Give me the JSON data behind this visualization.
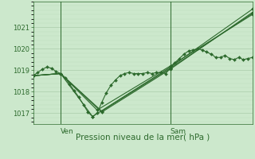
{
  "bg_color": "#cce8cc",
  "plot_bg": "#cce8cc",
  "grid_major_color": "#aaccaa",
  "grid_minor_color": "#bbddbb",
  "line_color": "#2d6a2d",
  "xlabel": "Pression niveau de la mer( hPa )",
  "ylim": [
    1016.5,
    1022.2
  ],
  "xlim": [
    0,
    48
  ],
  "yticks": [
    1017,
    1018,
    1019,
    1020,
    1021
  ],
  "ven_x": 6,
  "sam_x": 30,
  "series0": [
    0,
    1018.75,
    1,
    1018.9,
    2,
    1019.05,
    3,
    1019.15,
    4,
    1019.1,
    5,
    1018.95,
    6,
    1018.85,
    7,
    1018.65,
    8,
    1018.35,
    9,
    1018.05,
    10,
    1017.75,
    11,
    1017.4,
    12,
    1017.05,
    13,
    1016.85,
    14,
    1017.0,
    15,
    1017.5,
    16,
    1017.95,
    17,
    1018.3,
    18,
    1018.55,
    19,
    1018.75,
    20,
    1018.85,
    21,
    1018.9,
    22,
    1018.85,
    23,
    1018.85,
    24,
    1018.85,
    25,
    1018.9,
    26,
    1018.85,
    27,
    1018.9,
    28,
    1018.9,
    29,
    1018.85,
    30,
    1019.1,
    31,
    1019.35,
    32,
    1019.55,
    33,
    1019.75,
    34,
    1019.9,
    35,
    1019.95,
    36,
    1020.0,
    37,
    1019.95,
    38,
    1019.85,
    39,
    1019.75,
    40,
    1019.6,
    41,
    1019.6,
    42,
    1019.7,
    43,
    1019.55,
    44,
    1019.5,
    45,
    1019.6,
    46,
    1019.5,
    47,
    1019.55,
    48,
    1019.6
  ],
  "series1": [
    0,
    1018.75,
    6,
    1018.85,
    13,
    1016.85,
    30,
    1019.15,
    48,
    1021.85
  ],
  "series2": [
    0,
    1018.75,
    6,
    1018.85,
    15,
    1017.05,
    30,
    1019.05,
    48,
    1021.7
  ],
  "series3": [
    0,
    1018.75,
    6,
    1018.85,
    15,
    1017.1,
    30,
    1019.1,
    48,
    1021.65
  ],
  "series4": [
    0,
    1018.75,
    6,
    1018.85,
    14,
    1017.15,
    30,
    1019.2,
    48,
    1021.6
  ]
}
